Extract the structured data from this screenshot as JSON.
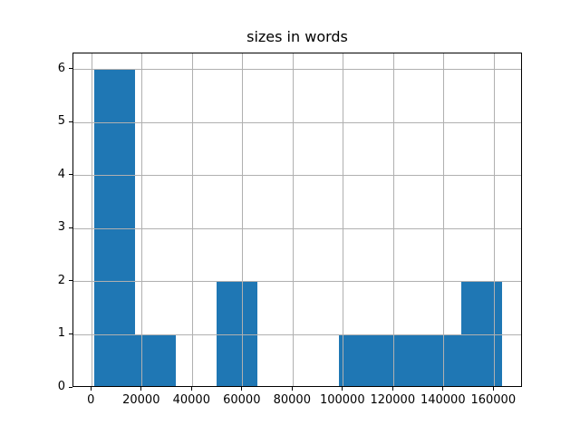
{
  "title": "sizes in words",
  "colors": {
    "bar": "#1f77b4",
    "grid": "#b0b0b0",
    "spine": "#000000",
    "text": "#000000",
    "background": "#ffffff"
  },
  "chart_data": {
    "type": "bar",
    "subtype": "histogram",
    "title": "sizes in words",
    "xlabel": "",
    "ylabel": "",
    "bin_edges": [
      800,
      17050,
      33300,
      49550,
      65800,
      82050,
      98300,
      114550,
      130800,
      147050,
      163300
    ],
    "counts": [
      6,
      1,
      0,
      2,
      0,
      0,
      1,
      1,
      1,
      2
    ],
    "xticks": [
      0,
      20000,
      40000,
      60000,
      80000,
      100000,
      120000,
      140000,
      160000
    ],
    "yticks": [
      0,
      1,
      2,
      3,
      4,
      5,
      6
    ],
    "xlim": [
      -7325,
      171425
    ],
    "ylim": [
      0,
      6.3
    ],
    "grid": true,
    "grid_above_bars": true,
    "legend_position": "none"
  }
}
